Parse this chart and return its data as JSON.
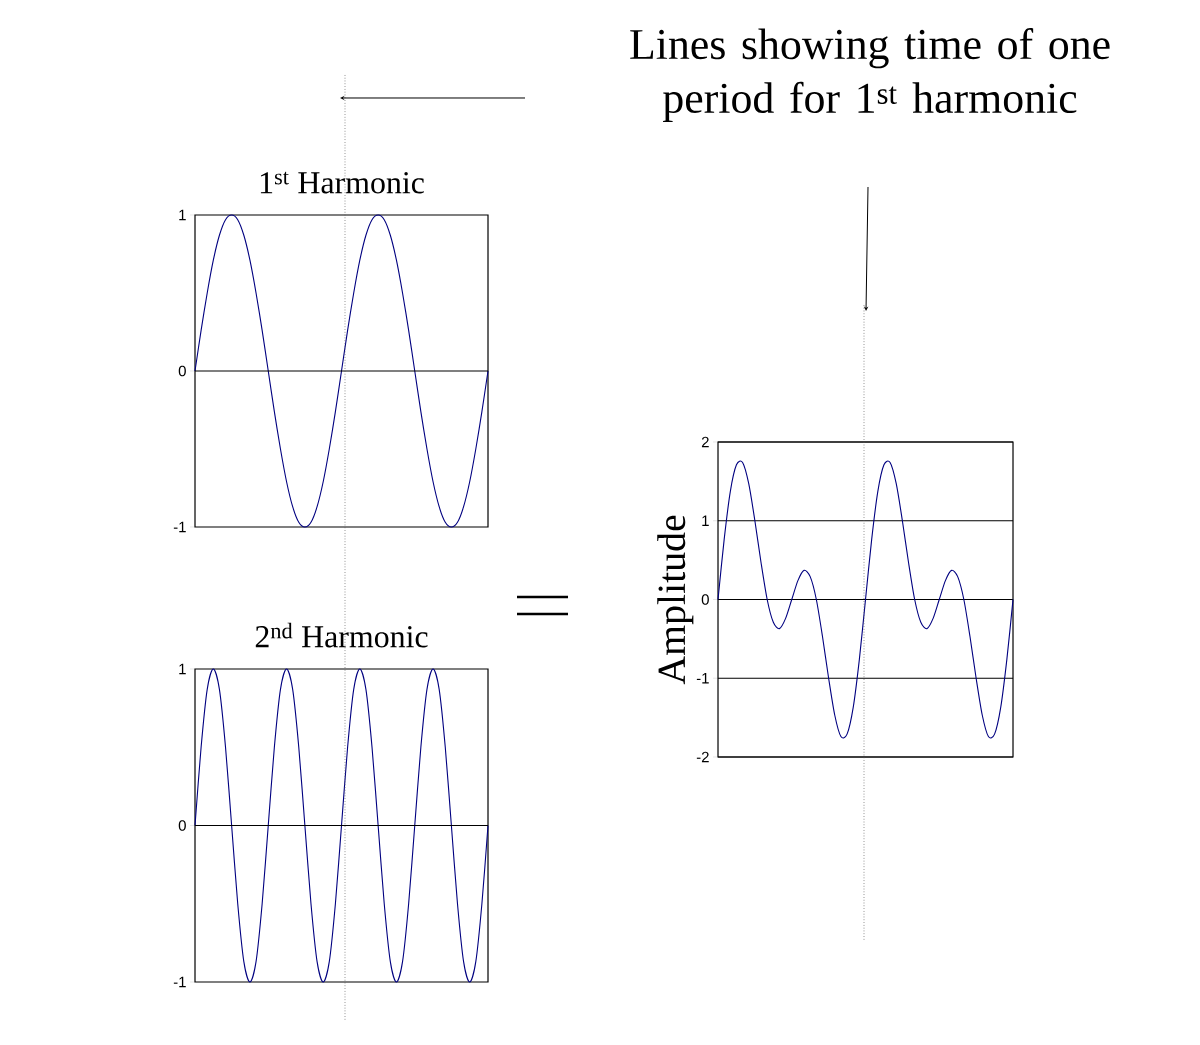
{
  "chart_data": [
    {
      "type": "line",
      "title": "1$^{st}$ Harmonic",
      "annotations": [
        "Lines showing time of one period for 1$^{st}$ harmonic"
      ],
      "categories": [
        null,
        null,
        null,
        null,
        null,
        null,
        null,
        null,
        null,
        null,
        null,
        null,
        null,
        null,
        null,
        null,
        null,
        null,
        null,
        null,
        null,
        null,
        null,
        null,
        null,
        null,
        null,
        null,
        null,
        null,
        null,
        null,
        null,
        null,
        null,
        null,
        null,
        null,
        null,
        null,
        null,
        null,
        null,
        null,
        null,
        null,
        null,
        null,
        null
      ],
      "series": [
        {
          "color": "#000080",
          "values": [
            0,
            0.26,
            0.5,
            0.71,
            0.87,
            0.97,
            1,
            0.97,
            0.87,
            0.71,
            0.5,
            0.26,
            0,
            -0.26,
            -0.5,
            -0.71,
            -0.87,
            -0.97,
            -1,
            -0.97,
            -0.87,
            -0.71,
            -0.5,
            -0.26,
            0,
            0.26,
            0.5,
            0.71,
            0.87,
            0.97,
            1,
            0.97,
            0.87,
            0.71,
            0.5,
            0.26,
            0,
            -0.26,
            -0.5,
            -0.71,
            -0.87,
            -0.97,
            -1,
            -0.97,
            -0.87,
            -0.71,
            -0.5,
            -0.26,
            0
          ]
        }
      ],
      "ylim": [
        -1,
        1
      ],
      "yticks": [
        -1,
        0,
        1
      ],
      "ref_lines": [
        {
          "axis": "y",
          "value": 0
        }
      ],
      "marker": "none",
      "line_style": "solid"
    },
    {
      "type": "line",
      "title": "2$^{nd}$ Harmonic",
      "categories": [
        null,
        null,
        null,
        null,
        null,
        null,
        null,
        null,
        null,
        null,
        null,
        null,
        null,
        null,
        null,
        null,
        null,
        null,
        null,
        null,
        null,
        null,
        null,
        null,
        null,
        null,
        null,
        null,
        null,
        null,
        null,
        null,
        null,
        null,
        null,
        null,
        null,
        null,
        null,
        null,
        null,
        null,
        null,
        null,
        null,
        null,
        null,
        null,
        null
      ],
      "series": [
        {
          "color": "#000080",
          "values": [
            0,
            0.5,
            0.87,
            1,
            0.87,
            0.5,
            0,
            -0.5,
            -0.87,
            -1,
            -0.87,
            -0.5,
            0,
            0.5,
            0.87,
            1,
            0.87,
            0.5,
            0,
            -0.5,
            -0.87,
            -1,
            -0.87,
            -0.5,
            0,
            0.5,
            0.87,
            1,
            0.87,
            0.5,
            0,
            -0.5,
            -0.87,
            -1,
            -0.87,
            -0.5,
            0,
            0.5,
            0.87,
            1,
            0.87,
            0.5,
            0,
            -0.5,
            -0.87,
            -1,
            -0.87,
            -0.5,
            0
          ]
        }
      ],
      "ylim": [
        -1,
        1
      ],
      "yticks": [
        -1,
        0,
        1
      ],
      "ref_lines": [
        {
          "axis": "y",
          "value": 0
        }
      ],
      "marker": "none",
      "line_style": "solid"
    },
    {
      "type": "line",
      "ylabel": "Amplitude",
      "categories": [
        null,
        null,
        null,
        null,
        null,
        null,
        null,
        null,
        null,
        null,
        null,
        null,
        null,
        null,
        null,
        null,
        null,
        null,
        null,
        null,
        null,
        null,
        null,
        null,
        null,
        null,
        null,
        null,
        null,
        null,
        null,
        null,
        null,
        null,
        null,
        null,
        null,
        null,
        null,
        null,
        null,
        null,
        null,
        null,
        null,
        null,
        null,
        null,
        null
      ],
      "series": [
        {
          "color": "#000080",
          "values": [
            0,
            0.76,
            1.37,
            1.71,
            1.74,
            1.47,
            1,
            0.47,
            0,
            -0.29,
            -0.37,
            -0.24,
            0,
            0.24,
            0.37,
            0.29,
            0,
            -0.47,
            -1,
            -1.47,
            -1.74,
            -1.71,
            -1.37,
            -0.76,
            0,
            0.76,
            1.37,
            1.71,
            1.74,
            1.47,
            1,
            0.47,
            0,
            -0.29,
            -0.37,
            -0.24,
            0,
            0.24,
            0.37,
            0.29,
            0,
            -0.47,
            -1,
            -1.47,
            -1.74,
            -1.71,
            -1.37,
            -0.76,
            0
          ]
        }
      ],
      "ylim": [
        -2,
        2
      ],
      "yticks": [
        -2,
        -1,
        0,
        1,
        2
      ],
      "grid": "y",
      "marker": "none",
      "line_style": "solid"
    }
  ]
}
